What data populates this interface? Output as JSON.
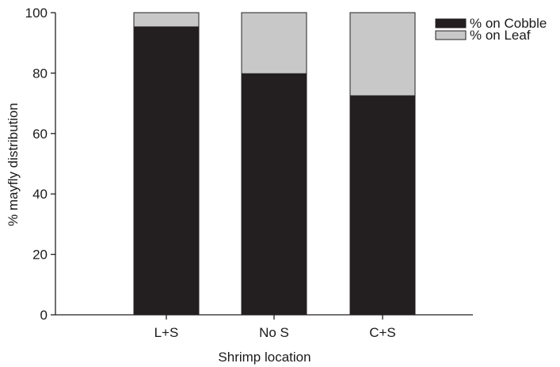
{
  "chart_data": {
    "type": "bar",
    "stacked": true,
    "categories": [
      "L+S",
      "No S",
      "C+S"
    ],
    "series": [
      {
        "name": "% on Cobble",
        "values": [
          95.3,
          79.8,
          72.5
        ],
        "color": "#231f20"
      },
      {
        "name": "% on Leaf",
        "values": [
          4.7,
          20.2,
          27.5
        ],
        "color": "#c8c8c8"
      }
    ],
    "xlabel": "Shrimp location",
    "ylabel": "% mayfly distribution",
    "ylim": [
      0,
      100
    ],
    "yticks": [
      0,
      20,
      40,
      60,
      80,
      100
    ],
    "grid": false,
    "legend_position": "top-right"
  }
}
